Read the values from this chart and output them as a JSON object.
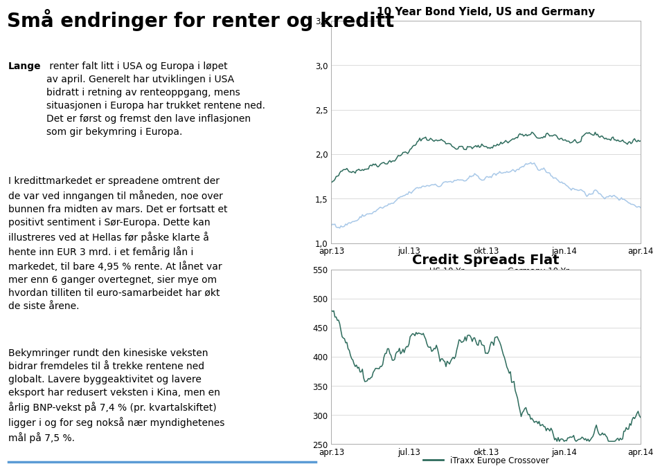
{
  "title": "Små endringer for renter og kreditt",
  "title_fontsize": 20,
  "title_color": "#000000",
  "title_fontweight": "bold",
  "bg_color": "#ffffff",
  "chart1": {
    "title": "10 Year Bond Yield, US and Germany",
    "title_fontsize": 11,
    "title_fontweight": "bold",
    "ylim": [
      1.0,
      3.5
    ],
    "yticks": [
      1.0,
      1.5,
      2.0,
      2.5,
      3.0,
      3.5
    ],
    "ytick_labels": [
      "1,0",
      "1,5",
      "2,0",
      "2,5",
      "3,0",
      "3,5"
    ],
    "xtick_labels": [
      "apr.13",
      "jul.13",
      "okt.13",
      "jan.14",
      "apr.14"
    ],
    "us_color": "#2d6b5c",
    "germany_color": "#a8c8e8",
    "legend_us": "US 10 Yr",
    "legend_germany": "Germany 10 Yr"
  },
  "chart2": {
    "title": "Credit Spreads Flat",
    "title_fontsize": 14,
    "title_fontweight": "bold",
    "ylim": [
      250,
      550
    ],
    "yticks": [
      250,
      300,
      350,
      400,
      450,
      500,
      550
    ],
    "ytick_labels": [
      "250",
      "300",
      "350",
      "400",
      "450",
      "500",
      "550"
    ],
    "xtick_labels": [
      "apr.13",
      "jul.13",
      "okt.13",
      "jan.14",
      "apr.14"
    ],
    "color": "#2d6b5c",
    "legend": "iTraxx Europe Crossover"
  },
  "text_block1_bold": "Lange",
  "text_block1_rest": " renter falt litt i USA og Europa i løpet\nav april. Generelt har utviklingen i USA\nbidratt i retning av renteoppgang, mens\nsituasjonen i Europa har trukket rentene ned.\nDet er først og fremst den lave inflasjonen\nsom gir bekymring i Europa.",
  "text_block2": "I kredittmarkedet er spreadene omtrent der\nde var ved inngangen til måneden, noe over\nbunnen fra midten av mars. Det er fortsatt et\npositivt sentiment i Sør-Europa. Dette kan\nillustreres ved at Hellas før påske klarte å\nhente inn EUR 3 mrd. i et femårig lån i\nmarkedet, til bare 4,95 % rente. At lånet var\nmer enn 6 ganger overtegnet, sier mye om\nhvordan tilliten til euro-samarbeidet har økt\nde siste årene.",
  "text_block3": "Bekymringer rundt den kinesiske veksten\nbidrar fremdeles til å trekke rentene ned\nglobalt. Lavere byggeaktivitet og lavere\neksport har redusert veksten i Kina, men en\nårlig BNP-vekst på 7,4 % (pr. kvartalskiftet)\nligger i og for seg nokså nær myndighetenes\nmål på 7,5 %.",
  "text_fontsize": 10,
  "bottom_line_color": "#5b9bd5"
}
